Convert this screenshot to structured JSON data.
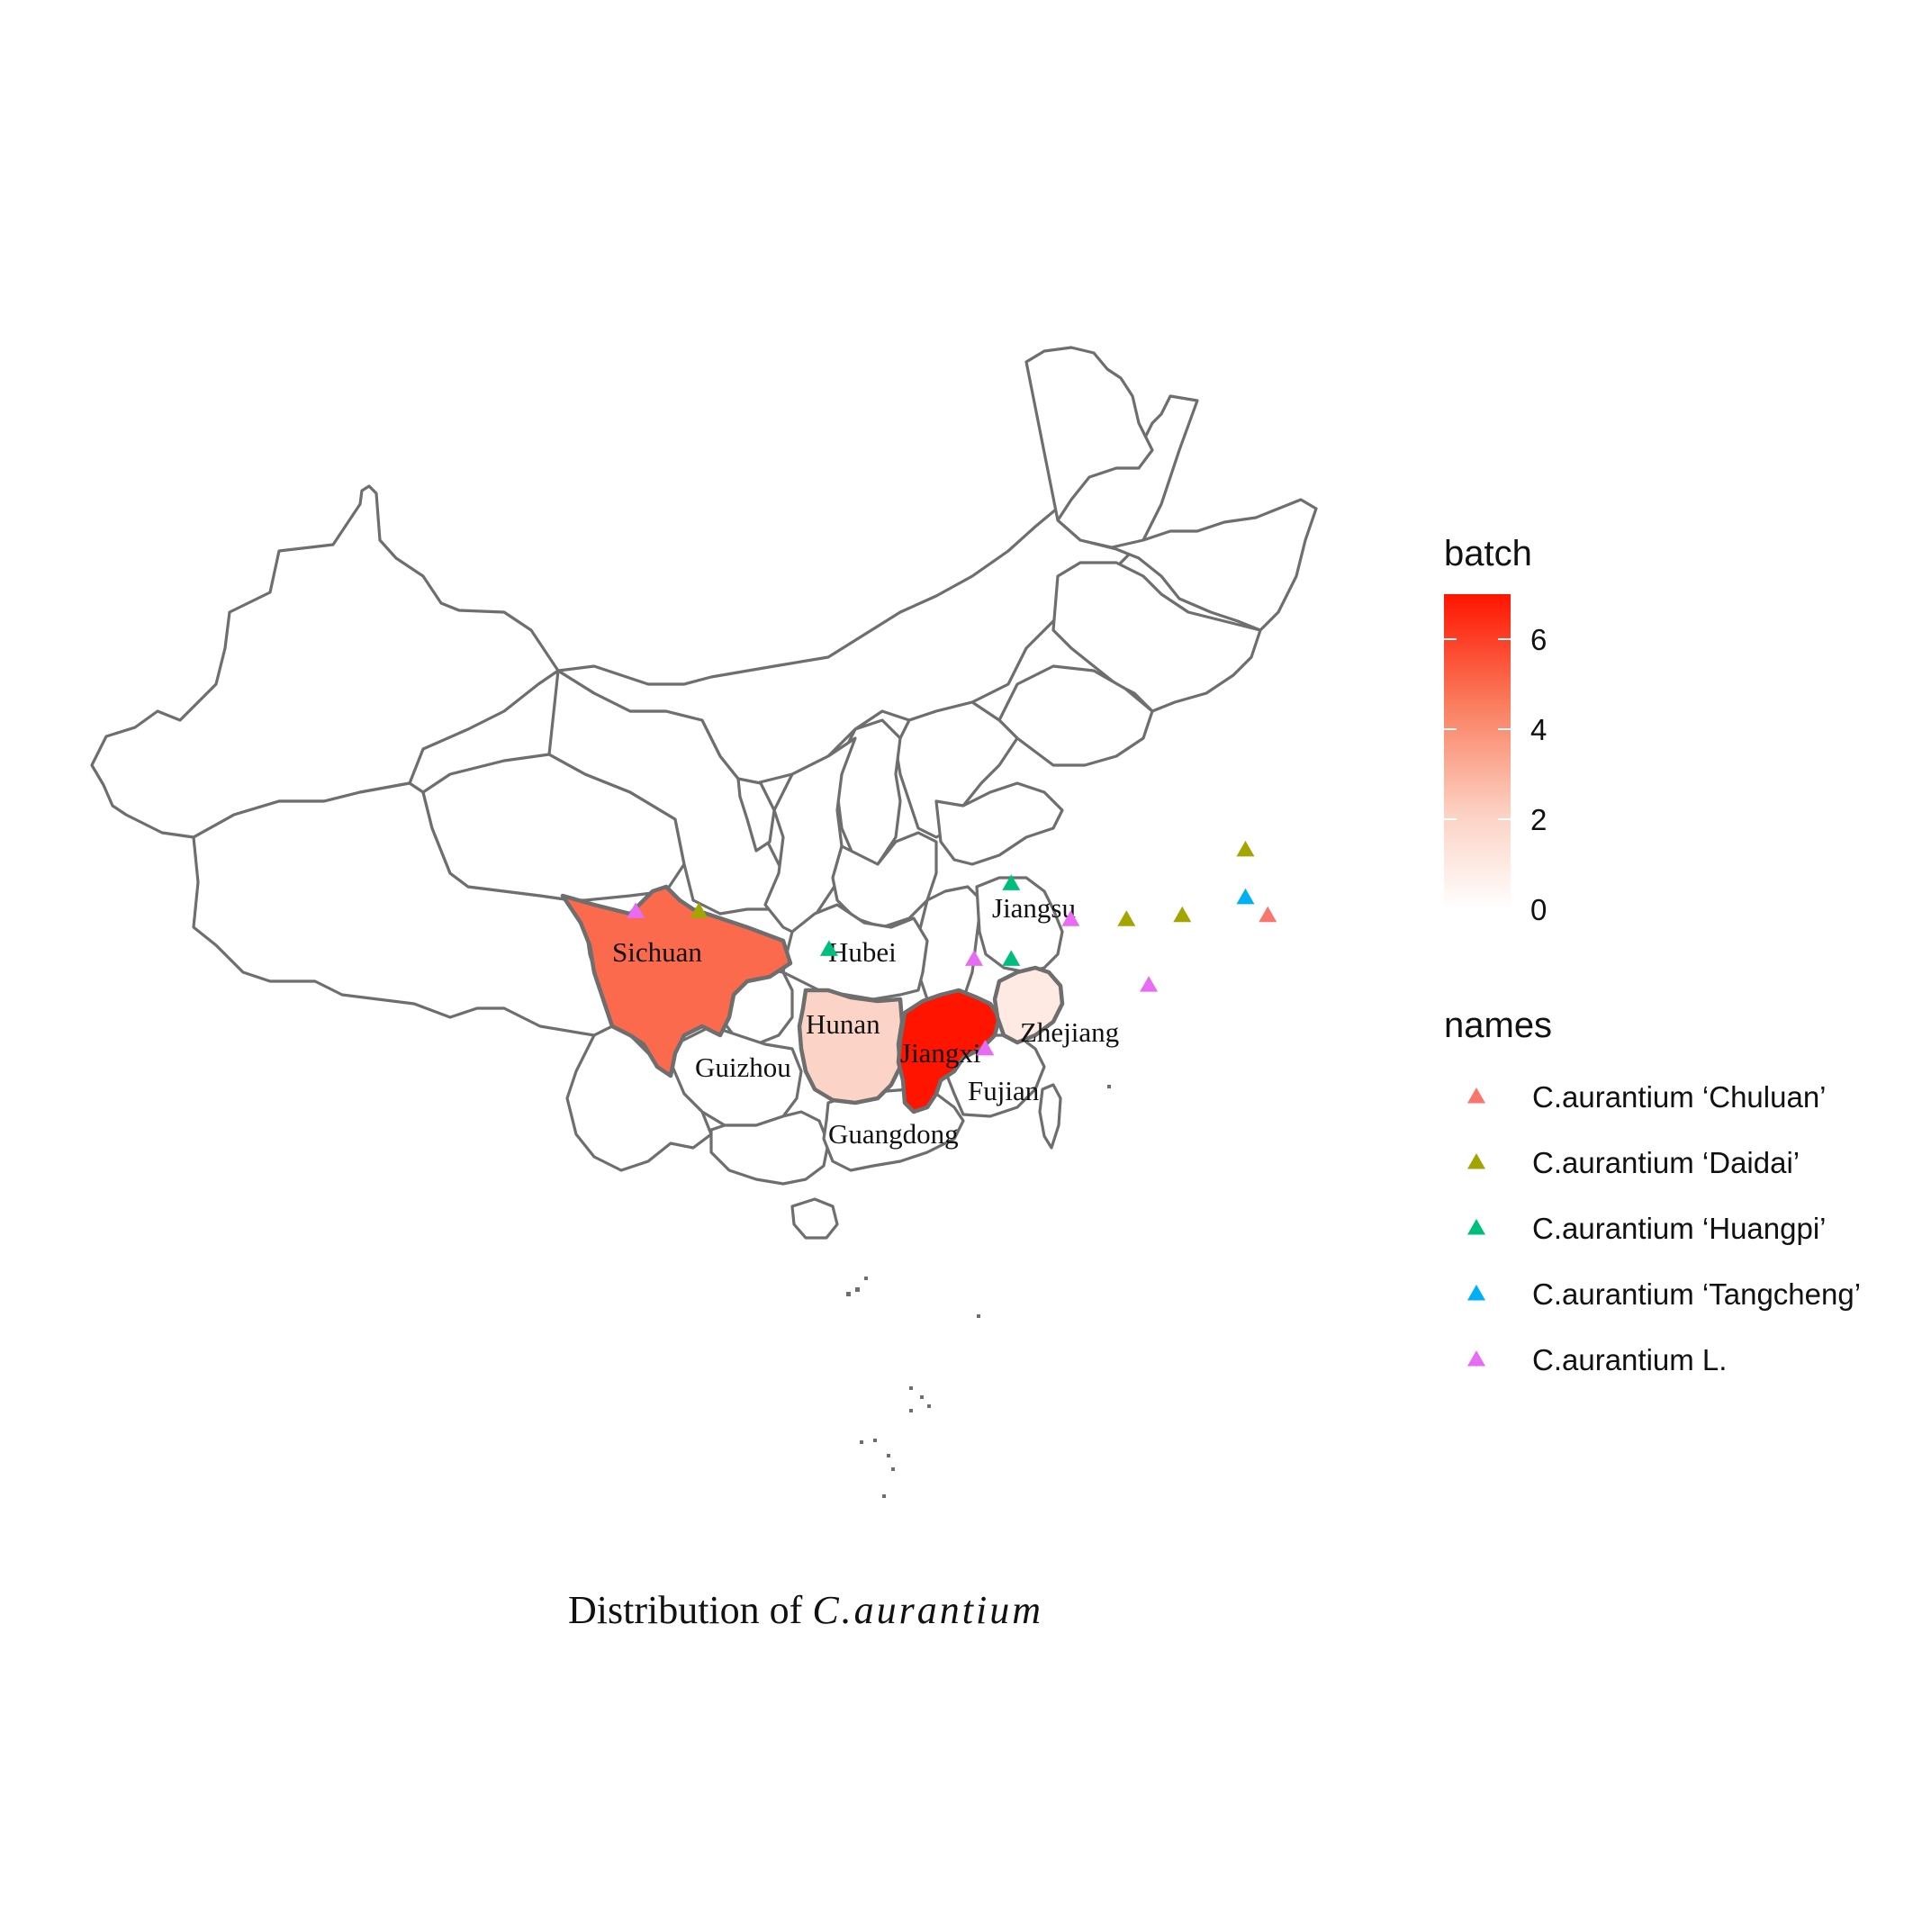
{
  "chart_data": {
    "type": "choropleth_map",
    "fill_variable": "batch",
    "shape_variable": "names",
    "color_scale": {
      "low": "#ffffff",
      "high": "#ff1400",
      "min": 0,
      "max": 7,
      "ticks": [
        0,
        2,
        4,
        6
      ]
    },
    "regions": [
      {
        "name": "Sichuan",
        "batch": 5
      },
      {
        "name": "Hunan",
        "batch": 2
      },
      {
        "name": "Jiangxi",
        "batch": 7
      },
      {
        "name": "Zhejiang",
        "batch": 1
      },
      {
        "name": "Hubei",
        "batch": 0
      },
      {
        "name": "Guizhou",
        "batch": 0
      },
      {
        "name": "Jiangsu",
        "batch": 0
      },
      {
        "name": "Fujian",
        "batch": 0
      },
      {
        "name": "Guangdong",
        "batch": 0
      }
    ],
    "points": [
      {
        "region": "Sichuan",
        "lon": 103.2,
        "lat": 30.3,
        "variety": "C.aurantium L."
      },
      {
        "region": "Sichuan",
        "lon": 104.9,
        "lat": 30.3,
        "variety": "C.aurantium ‘Daidai’"
      },
      {
        "region": "Guizhou",
        "lon": 108.4,
        "lat": 28.4,
        "variety": "C.aurantium ‘Huangpi’"
      },
      {
        "region": "Hubei",
        "lon": 113.3,
        "lat": 31.7,
        "variety": "C.aurantium ‘Huangpi’"
      },
      {
        "region": "Hunan",
        "lon": 112.3,
        "lat": 27.9,
        "variety": "C.aurantium L."
      },
      {
        "region": "Hunan",
        "lon": 113.3,
        "lat": 27.9,
        "variety": "C.aurantium ‘Huangpi’"
      },
      {
        "region": "Jiangxi",
        "lon": 114.9,
        "lat": 29.9,
        "variety": "C.aurantium L."
      },
      {
        "region": "Jiangxi",
        "lon": 116.4,
        "lat": 29.9,
        "variety": "C.aurantium ‘Daidai’"
      },
      {
        "region": "Jiangxi",
        "lon": 117.9,
        "lat": 30.1,
        "variety": "C.aurantium ‘Daidai’"
      },
      {
        "region": "Fujian",
        "lon": 117.0,
        "lat": 26.6,
        "variety": "C.aurantium L."
      },
      {
        "region": "Jiangsu",
        "lon": 119.6,
        "lat": 33.4,
        "variety": "C.aurantium ‘Daidai’"
      },
      {
        "region": "Zhejiang",
        "lon": 119.6,
        "lat": 31.0,
        "variety": "C.aurantium ‘Tangcheng’"
      },
      {
        "region": "Zhejiang",
        "lon": 120.2,
        "lat": 30.1,
        "variety": "C.aurantium ‘Chuluan’"
      },
      {
        "region": "Guangdong",
        "lon": 112.6,
        "lat": 23.4,
        "variety": "C.aurantium L."
      }
    ]
  },
  "map_labels": {
    "sichuan": "Sichuan",
    "hubei": "Hubei",
    "hunan": "Hunan",
    "guizhou": "Guizhou",
    "jiangxi": "Jiangxi",
    "jiangsu": "Jiangsu",
    "zhejiang": "Zhejiang",
    "fujian": "Fujian",
    "guangdong": "Guangdong"
  },
  "legend": {
    "fill_title": "batch",
    "fill_ticks": [
      "0",
      "2",
      "4",
      "6"
    ],
    "shape_title": "names",
    "entries": [
      {
        "label": "C.aurantium ‘Chuluan’",
        "color": "#F8766D"
      },
      {
        "label": "C.aurantium ‘Daidai’",
        "color": "#A3A500"
      },
      {
        "label": "C.aurantium ‘Huangpi’",
        "color": "#00BF7D"
      },
      {
        "label": "C.aurantium ‘Tangcheng’",
        "color": "#00B0F6"
      },
      {
        "label": "C.aurantium L.",
        "color": "#E76BF3"
      }
    ]
  },
  "caption": {
    "prefix": "Distribution of ",
    "italic": "C.aurantium"
  }
}
